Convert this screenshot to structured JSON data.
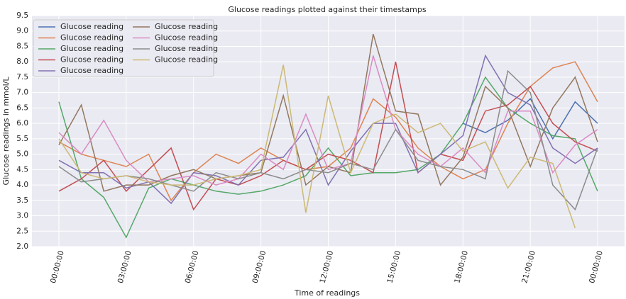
{
  "chart_data": {
    "type": "line",
    "title": "Glucose readings plotted against their timestamps",
    "x_label": "Time of readings",
    "y_label": "Glucose readings in mmol/L",
    "x": [
      0,
      1,
      2,
      3,
      4,
      5,
      6,
      7,
      8,
      9,
      10,
      11,
      12,
      13,
      14,
      15,
      16,
      17,
      18,
      19,
      20,
      21,
      22,
      23,
      24
    ],
    "xlim": [
      -1.2,
      25.2
    ],
    "xticks": [
      {
        "value": 0,
        "label": "00:00:00"
      },
      {
        "value": 3,
        "label": "03:00:00"
      },
      {
        "value": 6,
        "label": "06:00:00"
      },
      {
        "value": 9,
        "label": "09:00:00"
      },
      {
        "value": 12,
        "label": "12:00:00"
      },
      {
        "value": 15,
        "label": "15:00:00"
      },
      {
        "value": 18,
        "label": "18:00:00"
      },
      {
        "value": 21,
        "label": "21:00:00"
      },
      {
        "value": 24,
        "label": "00:00:00"
      }
    ],
    "ylim": [
      2.0,
      9.5
    ],
    "yticks": [
      {
        "value": 2,
        "label": "2.0"
      },
      2.5,
      {
        "value": 3,
        "label": "3.0"
      },
      3.5,
      {
        "value": 4,
        "label": "4.0"
      },
      4.5,
      {
        "value": 5,
        "label": "5.0"
      },
      5.5,
      {
        "value": 6,
        "label": "6.0"
      },
      6.5,
      {
        "value": 7,
        "label": "7.0"
      },
      7.5,
      {
        "value": 8,
        "label": "8.0"
      },
      8.5,
      {
        "value": 9,
        "label": "9.0"
      },
      9.5
    ],
    "grid": true,
    "legend": "upper left",
    "series": [
      {
        "name": "Glucose reading",
        "color": "#4c72b0",
        "values": [
          null,
          null,
          null,
          null,
          null,
          null,
          null,
          null,
          null,
          null,
          null,
          null,
          null,
          null,
          null,
          null,
          null,
          null,
          6.0,
          5.7,
          6.1,
          6.8,
          5.5,
          6.7,
          6.0
        ]
      },
      {
        "name": "Glucose reading",
        "color": "#dd8452",
        "values": [
          5.4,
          5.0,
          4.8,
          4.6,
          5.0,
          3.5,
          4.4,
          5.0,
          4.7,
          5.2,
          4.8,
          4.5,
          4.6,
          5.2,
          6.8,
          6.2,
          5.2,
          4.6,
          4.2,
          4.5,
          6.0,
          7.2,
          7.8,
          8.0,
          6.7
        ]
      },
      {
        "name": "Glucose reading",
        "color": "#55a868",
        "values": [
          6.7,
          4.2,
          3.6,
          2.3,
          3.9,
          4.2,
          4.0,
          3.8,
          3.7,
          3.8,
          4.0,
          4.3,
          5.2,
          4.3,
          4.4,
          4.4,
          4.5,
          5.0,
          6.0,
          7.5,
          6.5,
          6.0,
          5.6,
          5.5,
          3.8
        ]
      },
      {
        "name": "Glucose reading",
        "color": "#c44e52",
        "values": [
          3.8,
          4.2,
          4.8,
          3.8,
          4.5,
          5.2,
          3.2,
          4.2,
          4.0,
          4.3,
          4.8,
          4.5,
          5.0,
          4.8,
          4.4,
          8.0,
          4.4,
          5.0,
          4.8,
          6.4,
          6.6,
          7.2,
          6.0,
          5.4,
          5.1
        ]
      },
      {
        "name": "Glucose reading",
        "color": "#8172b3",
        "values": [
          4.8,
          4.4,
          4.4,
          3.9,
          4.1,
          3.4,
          4.4,
          4.3,
          4.0,
          4.8,
          4.9,
          5.8,
          4.0,
          5.1,
          6.0,
          6.0,
          4.4,
          5.0,
          5.6,
          8.2,
          7.0,
          6.6,
          5.2,
          4.7,
          5.2
        ]
      },
      {
        "name": "Glucose reading",
        "color": "#937860",
        "values": [
          5.3,
          6.6,
          3.8,
          4.0,
          4.0,
          4.3,
          4.5,
          4.2,
          4.3,
          4.4,
          6.9,
          4.0,
          4.6,
          4.4,
          8.9,
          6.4,
          6.3,
          4.0,
          4.9,
          7.2,
          6.5,
          4.6,
          6.5,
          7.5,
          5.4
        ]
      },
      {
        "name": "Glucose reading",
        "color": "#da8bc3",
        "values": [
          5.7,
          5.0,
          6.1,
          4.8,
          4.1,
          4.2,
          4.3,
          4.0,
          4.2,
          5.0,
          4.5,
          6.3,
          4.5,
          4.7,
          8.2,
          5.8,
          5.0,
          4.6,
          5.2,
          4.4,
          6.4,
          6.4,
          4.4,
          5.3,
          5.8
        ]
      },
      {
        "name": "Glucose reading",
        "color": "#8c8c8c",
        "values": [
          4.6,
          4.1,
          4.2,
          4.3,
          4.2,
          4.0,
          3.8,
          4.4,
          4.2,
          4.4,
          4.2,
          4.5,
          4.4,
          4.7,
          4.5,
          5.8,
          4.8,
          4.6,
          4.5,
          4.2,
          7.7,
          7.0,
          4.0,
          3.2,
          5.2
        ]
      },
      {
        "name": "Glucose reading",
        "color": "#ccb974",
        "values": [
          5.5,
          4.4,
          4.2,
          4.3,
          4.1,
          4.0,
          4.0,
          4.2,
          4.3,
          4.5,
          7.9,
          3.1,
          6.9,
          4.4,
          6.0,
          6.3,
          5.7,
          6.0,
          5.1,
          5.4,
          3.9,
          4.9,
          4.7,
          2.6,
          null
        ]
      }
    ]
  }
}
